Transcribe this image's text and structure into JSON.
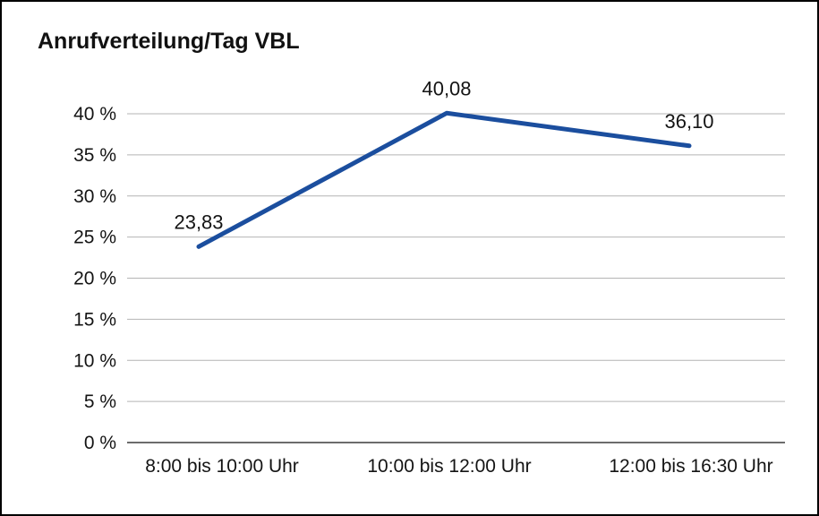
{
  "chart_data": {
    "type": "line",
    "title": "Anrufverteilung/Tag VBL",
    "categories": [
      "8:00 bis 10:00 Uhr",
      "10:00 bis 12:00 Uhr",
      "12:00 bis 16:30 Uhr"
    ],
    "values": [
      23.83,
      40.08,
      36.1
    ],
    "value_labels": [
      "23,83",
      "40,08",
      "36,10"
    ],
    "xlabel": "",
    "ylabel": "",
    "ylim": [
      0,
      40
    ],
    "ytick_step": 5,
    "ytick_labels": [
      "0 %",
      "5 %",
      "10 %",
      "15 %",
      "20 %",
      "25 %",
      "30 %",
      "35 %",
      "40 %"
    ],
    "grid": true,
    "legend": false,
    "line_color": "#1b4e9e"
  }
}
